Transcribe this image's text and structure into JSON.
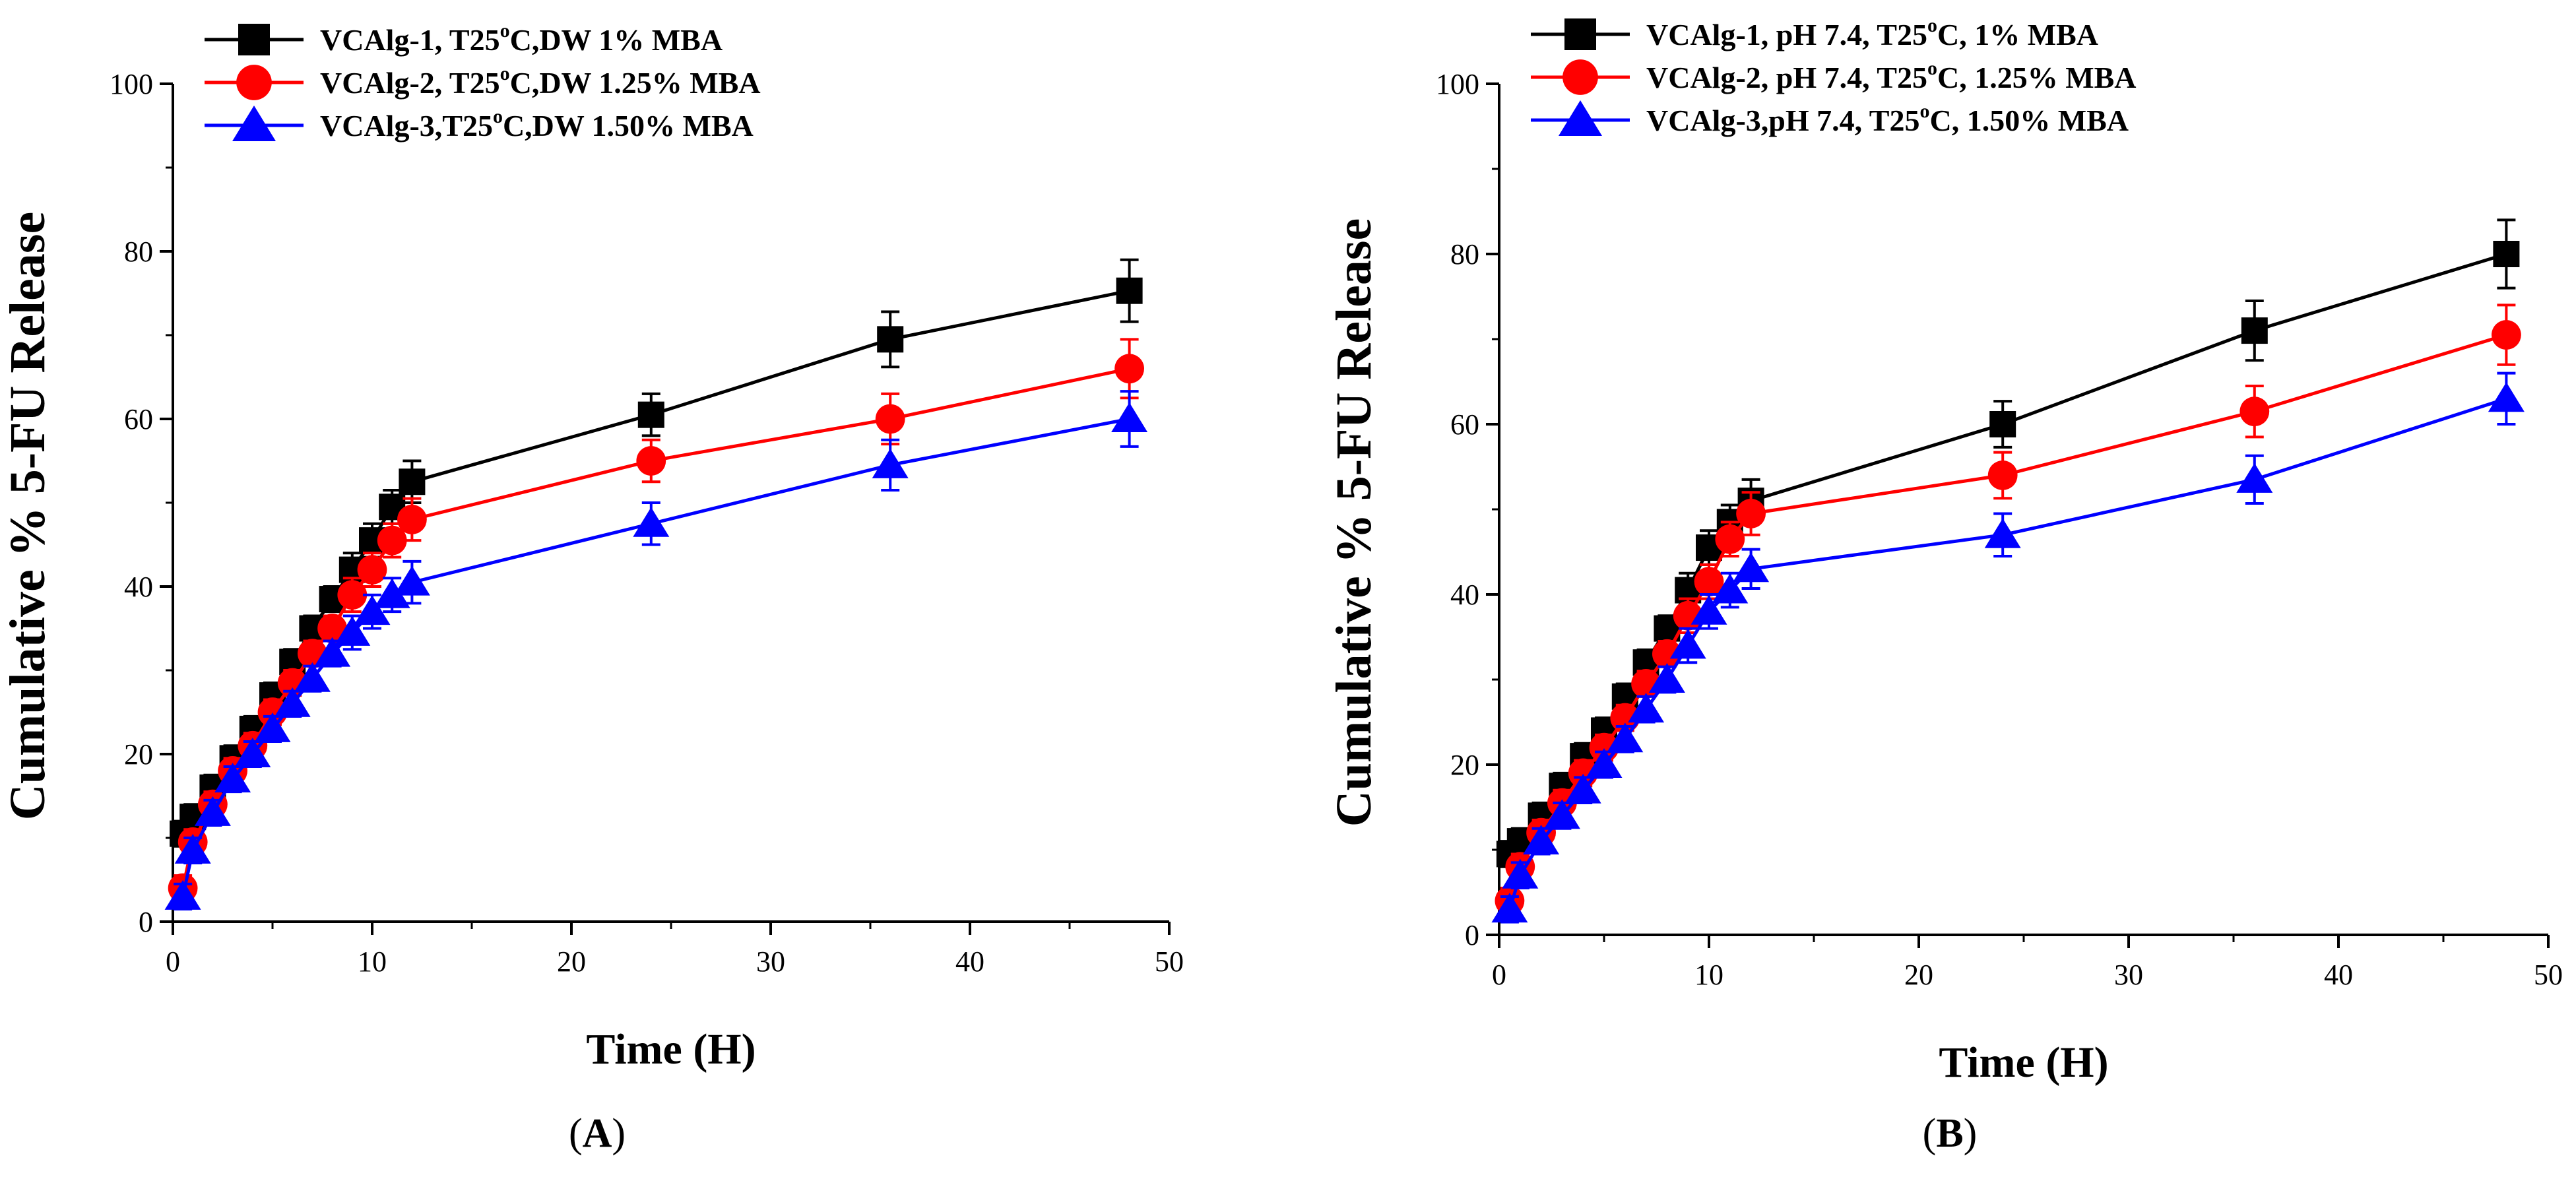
{
  "chart_data": [
    {
      "type": "line",
      "panel_label": "A",
      "xlabel": "Time (H)",
      "ylabel": "Cumulative % 5-FU Release",
      "xlim": [
        0,
        50
      ],
      "ylim": [
        0,
        100
      ],
      "xticks": [
        0,
        10,
        20,
        30,
        40,
        50
      ],
      "yticks": [
        0,
        20,
        40,
        60,
        80,
        100
      ],
      "legend_position": "top-left",
      "x": [
        0.5,
        1,
        2,
        3,
        4,
        5,
        6,
        7,
        8,
        9,
        10,
        11,
        12,
        24,
        36,
        48
      ],
      "series": [
        {
          "name": "VCAlg-1, T25°C,DW 1% MBA",
          "legend_parts": [
            "VCAlg-1, T25",
            "o",
            "C,DW 1% MBA"
          ],
          "color": "#000000",
          "marker": "square",
          "values": [
            10.5,
            12.5,
            16,
            19.5,
            23,
            27,
            31,
            35,
            38.5,
            42,
            45.5,
            49.5,
            52.5,
            60.5,
            69.5,
            75.3
          ],
          "errors": [
            1.5,
            1.5,
            1.5,
            1.5,
            1.5,
            1.5,
            1.5,
            1.5,
            1.5,
            2,
            2,
            2,
            2.5,
            2.5,
            3.3,
            3.7
          ]
        },
        {
          "name": "VCAlg-2, T25°C,DW 1.25% MBA",
          "legend_parts": [
            "VCAlg-2, T25",
            "o",
            "C,DW 1.25% MBA"
          ],
          "color": "#ff0000",
          "marker": "circle",
          "values": [
            4,
            9.5,
            14,
            18,
            21,
            25,
            28.5,
            32,
            35,
            39,
            42,
            45.5,
            48,
            55,
            60,
            66
          ],
          "errors": [
            1.5,
            1.5,
            1.5,
            1.5,
            1.5,
            1.5,
            1.5,
            1.5,
            1.5,
            2,
            2,
            2,
            2.5,
            2.5,
            3,
            3.5
          ]
        },
        {
          "name": "VCAlg-3,T25°C,DW 1.50% MBA",
          "legend_parts": [
            "VCAlg-3,T25",
            "o",
            "C,DW 1.50% MBA"
          ],
          "color": "#0000ff",
          "marker": "triangle",
          "values": [
            3,
            8.5,
            13,
            17,
            20,
            23,
            26,
            29,
            32,
            34.5,
            37,
            39,
            40.5,
            47.5,
            54.5,
            60
          ],
          "errors": [
            1.5,
            1.5,
            1.5,
            1.5,
            1.5,
            1.5,
            1.5,
            1.5,
            1.5,
            2,
            2,
            2,
            2.5,
            2.5,
            3,
            3.3
          ]
        }
      ]
    },
    {
      "type": "line",
      "panel_label": "B",
      "xlabel": "Time (H)",
      "ylabel": "Cumulative % 5-FU Release",
      "xlim": [
        0,
        50
      ],
      "ylim": [
        0,
        100
      ],
      "xticks": [
        0,
        10,
        20,
        30,
        40,
        50
      ],
      "yticks": [
        0,
        20,
        40,
        60,
        80,
        100
      ],
      "legend_position": "top-left",
      "x": [
        0.5,
        1,
        2,
        3,
        4,
        5,
        6,
        7,
        8,
        9,
        10,
        11,
        12,
        24,
        36,
        48
      ],
      "series": [
        {
          "name": "VCAlg-1, pH 7.4, T25°C, 1% MBA",
          "legend_parts": [
            "VCAlg-1, pH 7.4, T25",
            "o",
            "C, 1% MBA"
          ],
          "color": "#000000",
          "marker": "square",
          "values": [
            9.5,
            11,
            14,
            17.5,
            21,
            24,
            28,
            32,
            36,
            40.5,
            45.5,
            48.5,
            51,
            60,
            71,
            80
          ],
          "errors": [
            1.5,
            1.5,
            1.5,
            1.5,
            1.5,
            1.5,
            1.5,
            1.5,
            1.5,
            2,
            2,
            2,
            2.5,
            2.7,
            3.5,
            4
          ]
        },
        {
          "name": "VCAlg-2, pH 7.4, T25°C, 1.25% MBA",
          "legend_parts": [
            "VCAlg-2, pH 7.4, T25",
            "o",
            "C, 1.25% MBA"
          ],
          "color": "#ff0000",
          "marker": "circle",
          "values": [
            4,
            8,
            12,
            15.5,
            19,
            22,
            25.5,
            29.5,
            33,
            37.5,
            41.5,
            46.5,
            49.5,
            54,
            61.5,
            70.5
          ],
          "errors": [
            1.5,
            1.5,
            1.5,
            1.5,
            1.5,
            1.5,
            1.5,
            1.5,
            1.5,
            2,
            2,
            2,
            2.5,
            2.7,
            3,
            3.5
          ]
        },
        {
          "name": "VCAlg-3,pH 7.4, T25°C, 1.50% MBA",
          "legend_parts": [
            "VCAlg-3,pH 7.4, T25",
            "o",
            "C, 1.50% MBA"
          ],
          "color": "#0000ff",
          "marker": "triangle",
          "values": [
            3,
            7,
            11,
            14,
            17,
            20,
            23,
            26.5,
            30,
            34,
            38,
            40.5,
            43,
            47,
            53.5,
            63
          ],
          "errors": [
            1.5,
            1.5,
            1.5,
            1.5,
            1.5,
            1.5,
            1.5,
            1.5,
            1.5,
            2,
            2,
            2,
            2.3,
            2.5,
            2.8,
            3
          ]
        }
      ]
    }
  ]
}
